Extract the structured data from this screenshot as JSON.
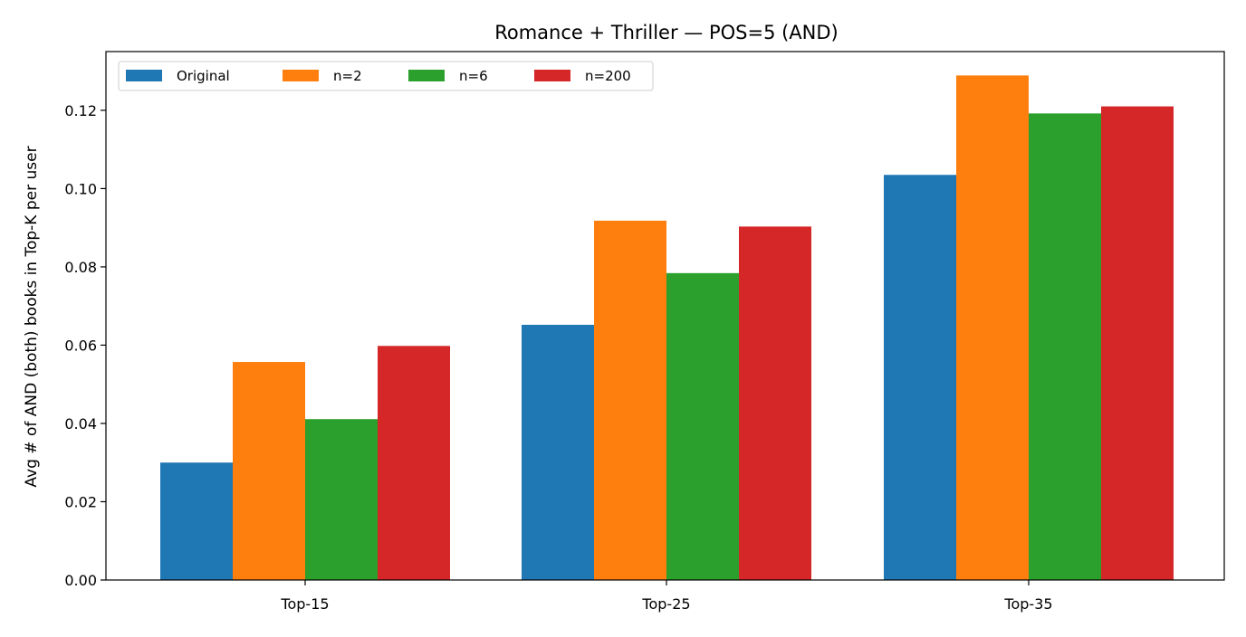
{
  "chart_data": {
    "type": "bar",
    "title": "Romance + Thriller — POS=5 (AND)",
    "xlabel": "",
    "ylabel": "Avg # of AND (both) books in Top-K per user",
    "categories": [
      "Top-15",
      "Top-25",
      "Top-35"
    ],
    "series": [
      {
        "name": "Original",
        "color": "#1f77b4",
        "values": [
          0.03,
          0.0652,
          0.1035
        ]
      },
      {
        "name": "n=2",
        "color": "#ff7f0e",
        "values": [
          0.0557,
          0.0918,
          0.1289
        ]
      },
      {
        "name": "n=6",
        "color": "#2ca02c",
        "values": [
          0.0411,
          0.0784,
          0.1192
        ]
      },
      {
        "name": "n=200",
        "color": "#d62728",
        "values": [
          0.0598,
          0.0903,
          0.121
        ]
      }
    ],
    "ylim": [
      0,
      0.135
    ],
    "yticks": [
      0.0,
      0.02,
      0.04,
      0.06,
      0.08,
      0.1,
      0.12
    ],
    "ytick_labels": [
      "0.00",
      "0.02",
      "0.04",
      "0.06",
      "0.08",
      "0.10",
      "0.12"
    ],
    "grid": false,
    "legend_position": "top-left"
  }
}
